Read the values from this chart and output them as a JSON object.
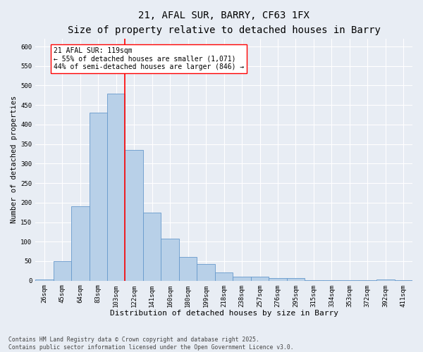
{
  "title_line1": "21, AFAL SUR, BARRY, CF63 1FX",
  "title_line2": "Size of property relative to detached houses in Barry",
  "xlabel": "Distribution of detached houses by size in Barry",
  "ylabel": "Number of detached properties",
  "bin_labels": [
    "26sqm",
    "45sqm",
    "64sqm",
    "83sqm",
    "103sqm",
    "122sqm",
    "141sqm",
    "160sqm",
    "180sqm",
    "199sqm",
    "218sqm",
    "238sqm",
    "257sqm",
    "276sqm",
    "295sqm",
    "315sqm",
    "334sqm",
    "353sqm",
    "372sqm",
    "392sqm",
    "411sqm"
  ],
  "bar_values": [
    3,
    50,
    190,
    430,
    480,
    335,
    175,
    108,
    60,
    42,
    22,
    10,
    10,
    7,
    6,
    2,
    2,
    1,
    1,
    4,
    1
  ],
  "bar_color": "#b8d0e8",
  "bar_edgecolor": "#6699cc",
  "bar_linewidth": 0.6,
  "vline_color": "red",
  "vline_linewidth": 1.2,
  "vline_index": 4.5,
  "annotation_text": "21 AFAL SUR: 119sqm\n← 55% of detached houses are smaller (1,071)\n44% of semi-detached houses are larger (846) →",
  "annotation_box_color": "white",
  "annotation_box_edgecolor": "red",
  "ylim": [
    0,
    620
  ],
  "yticks": [
    0,
    50,
    100,
    150,
    200,
    250,
    300,
    350,
    400,
    450,
    500,
    550,
    600
  ],
  "background_color": "#e8edf4",
  "grid_color": "white",
  "title_fontsize": 10,
  "subtitle_fontsize": 9,
  "xlabel_fontsize": 8,
  "ylabel_fontsize": 7.5,
  "tick_fontsize": 6.5,
  "annotation_fontsize": 7,
  "footnote": "Contains HM Land Registry data © Crown copyright and database right 2025.\nContains public sector information licensed under the Open Government Licence v3.0.",
  "footnote_fontsize": 5.8
}
